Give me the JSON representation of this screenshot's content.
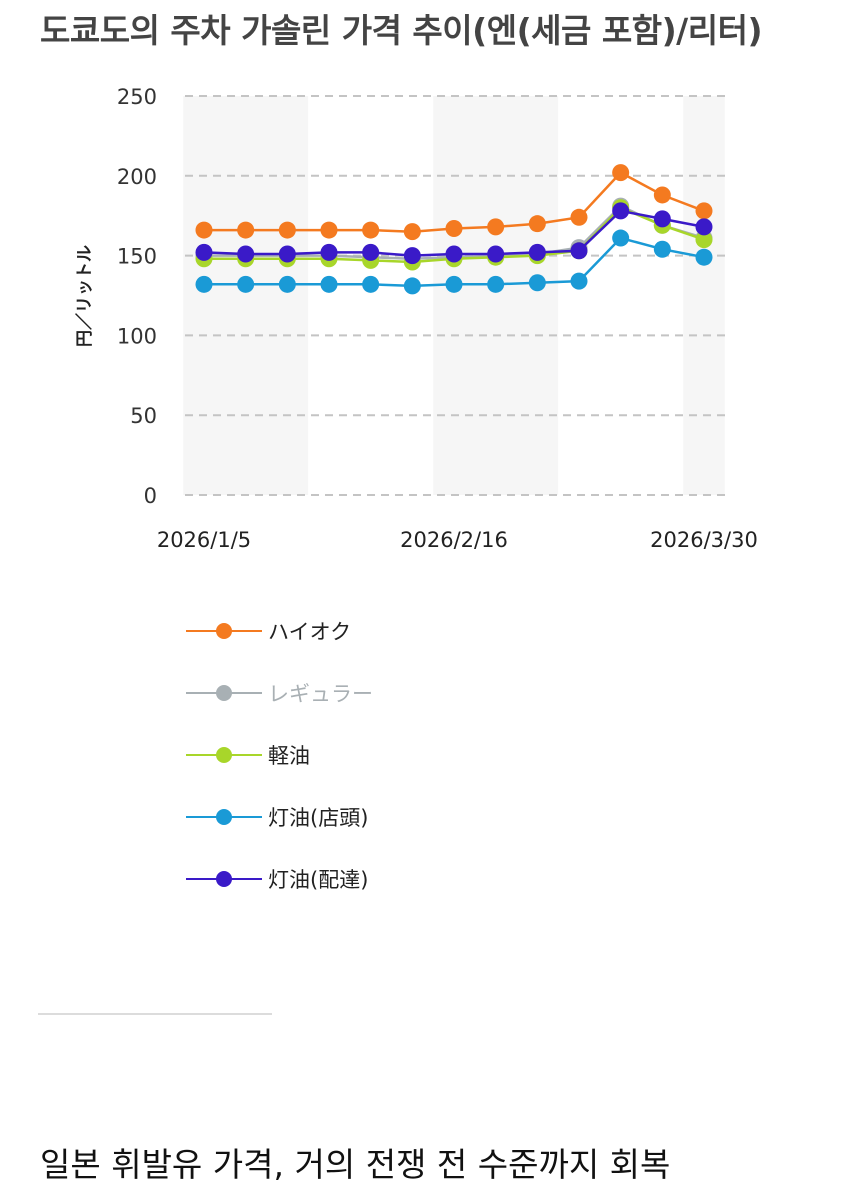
{
  "page": {
    "title": "도쿄도의 주차 가솔린 가격 추이(엔(세금 포함)/리터)",
    "headline": "일본 휘발유 가격, 거의 전쟁 전 수준까지 회복"
  },
  "chart_data": {
    "type": "line",
    "title": "도쿄도의 주차 가솔린 가격 추이(엔(세금 포함)/리터)",
    "ylabel": "円／リットル",
    "xlabel": "",
    "ylim": [
      0,
      250
    ],
    "yticks": [
      0,
      50,
      100,
      150,
      200,
      250
    ],
    "grid": true,
    "x_tick_labels": [
      "2026/1/5",
      "2026/2/16",
      "2026/3/30"
    ],
    "x_tick_index": [
      0,
      6,
      12
    ],
    "point_count": 13,
    "series": [
      {
        "name": "ハイオク",
        "color": "#f47a20",
        "values": [
          166,
          166,
          166,
          166,
          166,
          165,
          167,
          168,
          170,
          174,
          202,
          188,
          178
        ]
      },
      {
        "name": "レギュラー",
        "color": "#a8b0b4",
        "values": [
          150,
          150,
          150,
          150,
          149,
          148,
          149,
          150,
          151,
          155,
          181,
          169,
          161
        ]
      },
      {
        "name": "軽油",
        "color": "#a8d62a",
        "values": [
          148,
          148,
          148,
          148,
          147,
          146,
          148,
          149,
          150,
          153,
          180,
          169,
          160
        ]
      },
      {
        "name": "灯油(店頭)",
        "color": "#1a9ad6",
        "values": [
          132,
          132,
          132,
          132,
          132,
          131,
          132,
          132,
          133,
          134,
          161,
          154,
          149
        ]
      },
      {
        "name": "灯油(配達)",
        "color": "#3a1ac8",
        "values": [
          152,
          151,
          151,
          152,
          152,
          150,
          151,
          151,
          152,
          153,
          178,
          173,
          168
        ]
      }
    ]
  }
}
